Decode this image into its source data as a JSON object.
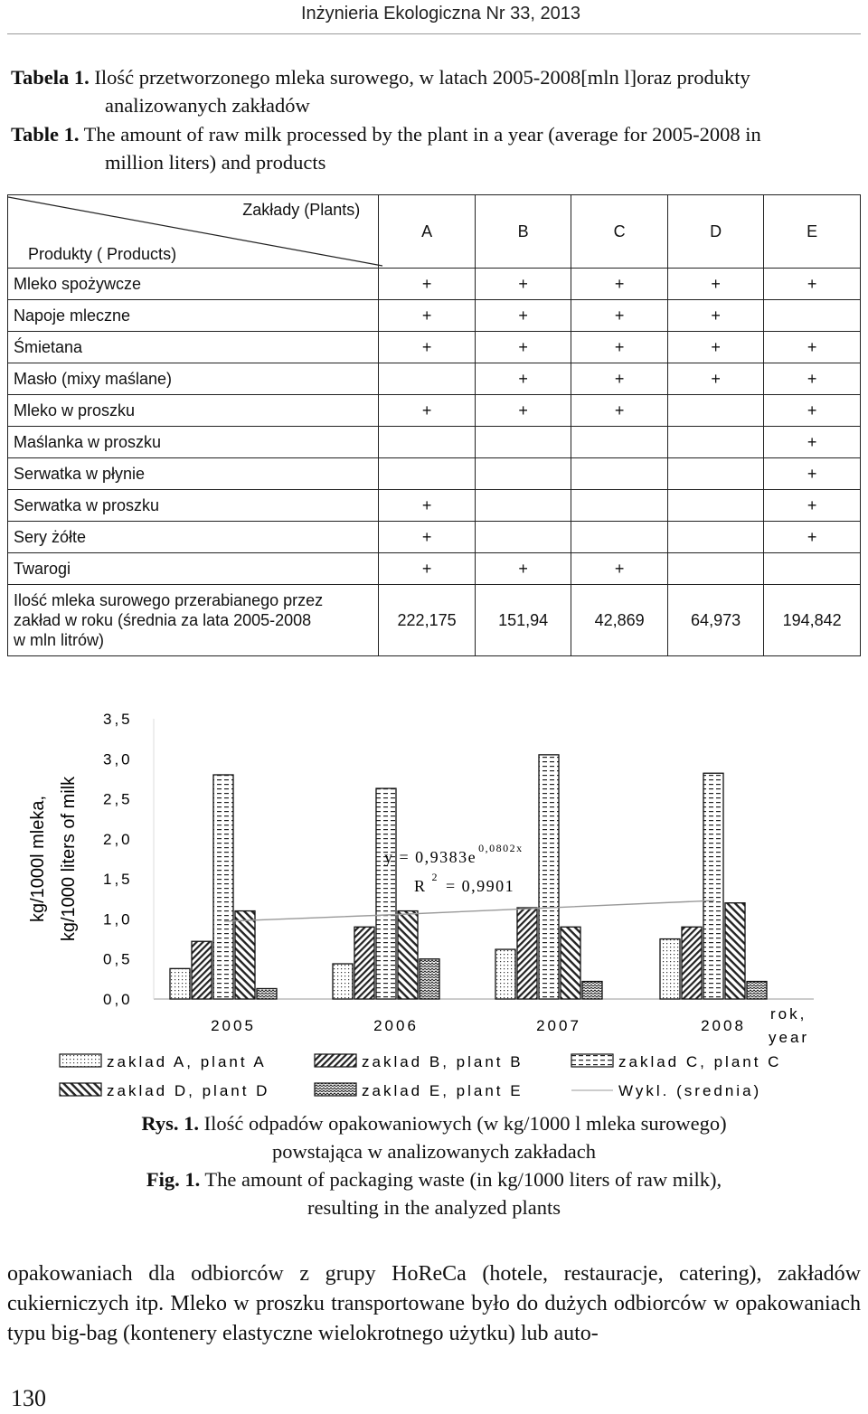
{
  "header": {
    "journal": "Inżynieria Ekologiczna Nr 33, 2013"
  },
  "table_caption": {
    "pl_label": "Tabela 1.",
    "pl_line1": "Ilość przetworzonego mleka surowego, w latach 2005-2008[mln l]oraz produkty",
    "pl_line2": "analizowanych zakładów",
    "en_label": "Table 1.",
    "en_line1": "The amount of raw milk processed by the plant in a year (average for 2005-2008 in",
    "en_line2": "million liters) and products"
  },
  "table": {
    "plants_header": "Zakłady (Plants)",
    "products_header": "Produkty ( Products)",
    "columns": [
      "A",
      "B",
      "C",
      "D",
      "E"
    ],
    "rows": [
      {
        "name": "Mleko spożywcze",
        "marks": [
          "+",
          "+",
          "+",
          "+",
          "+"
        ]
      },
      {
        "name": "Napoje mleczne",
        "marks": [
          "+",
          "+",
          "+",
          "+",
          ""
        ]
      },
      {
        "name": "Śmietana",
        "marks": [
          "+",
          "+",
          "+",
          "+",
          "+"
        ]
      },
      {
        "name": "Masło (mixy maślane)",
        "marks": [
          "",
          "+",
          "+",
          "+",
          "+"
        ]
      },
      {
        "name": "Mleko w proszku",
        "marks": [
          "+",
          "+",
          "+",
          "",
          "+"
        ]
      },
      {
        "name": "Maślanka w proszku",
        "marks": [
          "",
          "",
          "",
          "",
          "+"
        ]
      },
      {
        "name": "Serwatka w płynie",
        "marks": [
          "",
          "",
          "",
          "",
          "+"
        ]
      },
      {
        "name": "Serwatka w proszku",
        "marks": [
          "+",
          "",
          "",
          "",
          "+"
        ]
      },
      {
        "name": "Sery żółte",
        "marks": [
          "+",
          "",
          "",
          "",
          "+"
        ]
      },
      {
        "name": "Twarogi",
        "marks": [
          "+",
          "+",
          "+",
          "",
          ""
        ]
      }
    ],
    "amount_row": {
      "line1": "Ilość mleka surowego przerabianego przez",
      "line2": "zakład w roku (średnia za lata 2005-2008",
      "line3": "w mln litrów)",
      "values": [
        "222,175",
        "151,94",
        "42,869",
        "64,973",
        "194,842"
      ]
    }
  },
  "chart_data": {
    "type": "bar",
    "ylabel_line1": "kg/1000l mleka,",
    "ylabel_line2": "kg/1000 liters of milk",
    "xlabel_line1": "rok,",
    "xlabel_line2": "year",
    "ylim": [
      0,
      3.5
    ],
    "yticks": [
      "0,0",
      "0,5",
      "1,0",
      "1,5",
      "2,0",
      "2,5",
      "3,0",
      "3,5"
    ],
    "categories": [
      "2005",
      "2006",
      "2007",
      "2008"
    ],
    "series": [
      {
        "name": "zaklad A, plant A",
        "values": [
          0.38,
          0.44,
          0.62,
          0.75
        ]
      },
      {
        "name": "zaklad B, plant B",
        "values": [
          0.72,
          0.9,
          1.14,
          0.9
        ]
      },
      {
        "name": "zaklad C, plant C",
        "values": [
          2.8,
          2.63,
          3.05,
          2.82
        ]
      },
      {
        "name": "zaklad D, plant D",
        "values": [
          1.1,
          1.1,
          0.9,
          1.2
        ]
      },
      {
        "name": "zaklad E, plant E",
        "values": [
          0.13,
          0.5,
          0.22,
          0.22
        ]
      }
    ],
    "trend_legend": "Wykl. (srednia)",
    "trend_points": [
      0.97,
      1.05,
      1.14,
      1.23
    ],
    "equation": {
      "y": "y = 0,9383e",
      "y_exp": "0,0802x",
      "r2_label": "R",
      "r2_sup": "2",
      "r2_value": " = 0,9901"
    },
    "grid": false,
    "legend": "bottom"
  },
  "figure_caption": {
    "pl_label": "Rys. 1.",
    "pl_line1": "Ilość odpadów opakowaniowych (w kg/1000 l mleka surowego)",
    "pl_line2": "powstająca w analizowanych zakładach",
    "en_label": "Fig. 1.",
    "en_line1": "The amount of packaging waste (in kg/1000 liters of raw milk),",
    "en_line2": "resulting in the analyzed plants"
  },
  "body_text": "opakowaniach dla odbiorców z grupy HoReCa (hotele, restauracje, catering), zakładów cukierniczych itp. Mleko w proszku transportowane było do dużych odbiorców w opakowaniach typu big-bag (kontenery elastyczne wielokrotnego użytku) lub auto-",
  "page_number": "130"
}
